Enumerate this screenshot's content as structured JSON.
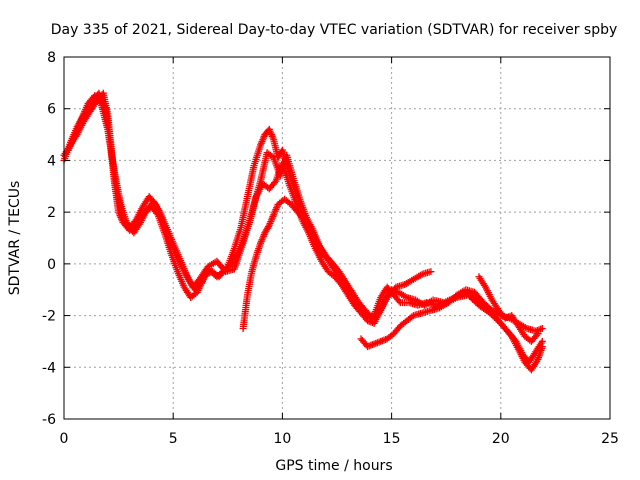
{
  "chart_data": {
    "type": "scatter",
    "title": "Day 335 of 2021, Sidereal Day-to-day VTEC variation (SDTVAR) for receiver spby",
    "xlabel": "GPS time / hours",
    "ylabel": "SDTVAR / TECUs",
    "xlim": [
      0,
      25
    ],
    "ylim": [
      -6,
      8
    ],
    "xticks": [
      0,
      5,
      10,
      15,
      20,
      25
    ],
    "yticks": [
      -6,
      -4,
      -2,
      0,
      2,
      4,
      6,
      8
    ],
    "grid": true,
    "marker": "+",
    "color": "#ff0000",
    "series": [
      {
        "x": [
          0.0,
          0.3,
          0.6,
          1.0,
          1.3,
          1.6,
          1.9,
          2.1,
          2.3,
          2.5,
          2.7,
          3.0,
          3.3,
          3.7,
          4.0,
          4.3,
          4.6,
          4.9,
          5.2,
          5.5,
          5.8,
          6.1,
          6.5,
          6.8,
          7.1,
          7.5,
          7.8,
          8.1,
          8.4,
          8.7,
          9.0,
          9.2,
          9.4,
          9.6,
          9.8,
          10.0,
          10.3,
          10.6,
          10.9,
          11.2,
          11.5,
          11.8,
          12.1,
          12.4,
          12.7,
          13.0,
          13.3,
          13.6,
          13.9,
          14.2,
          14.5,
          14.8,
          15.1,
          15.4,
          15.8,
          16.2,
          16.6,
          17.0,
          17.5,
          18.0,
          18.5,
          19.0,
          19.5,
          20.0,
          20.5,
          20.8,
          21.1,
          21.4,
          21.7,
          21.9
        ],
        "y": [
          4.0,
          4.7,
          5.3,
          5.9,
          6.3,
          6.6,
          6.0,
          4.8,
          3.2,
          2.0,
          1.6,
          1.3,
          1.5,
          2.0,
          2.2,
          1.9,
          1.2,
          0.4,
          -0.3,
          -0.9,
          -1.3,
          -1.1,
          -0.4,
          -0.3,
          -0.5,
          -0.1,
          0.6,
          1.4,
          2.6,
          3.8,
          4.6,
          5.0,
          5.2,
          4.8,
          4.1,
          4.4,
          3.6,
          2.8,
          2.0,
          1.5,
          0.8,
          0.4,
          0.2,
          -0.1,
          -0.5,
          -0.9,
          -1.4,
          -1.7,
          -2.0,
          -2.0,
          -1.3,
          -0.9,
          -1.2,
          -1.5,
          -1.5,
          -1.6,
          -1.5,
          -1.6,
          -1.5,
          -1.3,
          -1.2,
          -1.6,
          -1.9,
          -2.3,
          -2.8,
          -3.3,
          -3.8,
          -4.1,
          -3.7,
          -3.2
        ]
      },
      {
        "x": [
          0.2,
          0.5,
          0.8,
          1.1,
          1.4,
          1.7,
          2.0,
          2.3,
          2.6,
          2.9,
          3.2,
          3.5,
          3.8,
          4.1,
          4.4,
          4.7,
          5.0,
          5.3,
          5.6,
          5.9,
          6.2,
          6.6,
          7.0,
          7.4,
          7.8,
          8.2,
          8.6,
          9.0,
          9.3,
          9.6,
          9.9,
          10.2,
          10.5,
          10.8,
          11.1,
          11.4,
          11.7,
          12.0,
          12.3,
          12.6,
          12.9,
          13.2,
          13.5,
          13.8,
          14.1,
          14.4,
          14.7,
          15.0,
          15.3,
          15.7,
          16.1,
          16.5,
          16.9,
          17.4,
          17.9,
          18.4,
          18.9,
          19.4,
          19.9,
          20.3,
          20.7,
          21.0,
          21.3,
          21.6,
          21.9
        ],
        "y": [
          4.4,
          5.0,
          5.6,
          6.2,
          6.5,
          6.2,
          5.2,
          3.6,
          2.3,
          1.5,
          1.2,
          1.6,
          2.1,
          2.4,
          2.0,
          1.4,
          0.8,
          0.2,
          -0.4,
          -0.9,
          -0.6,
          -0.1,
          0.1,
          -0.3,
          -0.2,
          0.8,
          2.0,
          3.2,
          4.3,
          4.1,
          3.4,
          4.2,
          3.3,
          2.5,
          1.8,
          1.3,
          0.7,
          0.3,
          0.0,
          -0.3,
          -0.7,
          -1.1,
          -1.5,
          -1.8,
          -2.1,
          -1.9,
          -1.4,
          -1.0,
          -1.1,
          -1.3,
          -1.4,
          -1.6,
          -1.4,
          -1.5,
          -1.3,
          -1.1,
          -1.4,
          -1.7,
          -2.2,
          -2.6,
          -3.0,
          -3.5,
          -3.8,
          -3.4,
          -3.0
        ]
      },
      {
        "x": [
          0.0,
          0.3,
          0.6,
          0.9,
          1.2,
          1.5,
          1.8,
          2.0,
          2.2,
          2.4,
          2.7,
          3.0,
          3.3,
          3.6,
          3.9,
          4.2,
          4.5,
          4.8,
          5.1,
          5.4,
          5.7,
          6.0,
          6.3,
          6.6,
          7.0,
          7.4,
          7.8,
          8.2,
          8.5,
          8.8,
          9.1,
          9.4,
          9.7,
          10.0,
          10.3,
          10.6,
          10.9,
          11.2,
          11.5,
          11.8,
          12.1,
          12.4,
          12.7,
          13.0,
          13.3,
          13.6,
          13.9,
          14.2,
          14.5,
          14.8,
          15.2,
          15.6,
          16.0,
          16.4,
          16.8
        ],
        "y": [
          4.2,
          4.6,
          5.0,
          5.5,
          5.9,
          6.3,
          6.6,
          5.8,
          4.2,
          2.8,
          1.8,
          1.4,
          1.7,
          2.2,
          2.6,
          2.3,
          1.7,
          1.0,
          0.4,
          -0.1,
          -0.6,
          -1.0,
          -0.7,
          -0.2,
          -0.5,
          -0.2,
          0.1,
          0.9,
          1.6,
          2.6,
          3.1,
          2.9,
          3.2,
          3.9,
          3.1,
          2.4,
          1.7,
          1.2,
          0.6,
          0.1,
          -0.3,
          -0.5,
          -0.8,
          -1.2,
          -1.6,
          -1.9,
          -2.2,
          -2.3,
          -1.8,
          -1.3,
          -0.9,
          -0.8,
          -0.6,
          -0.4,
          -0.3
        ]
      },
      {
        "x": [
          8.2,
          8.4,
          8.6,
          8.8,
          9.0,
          9.2,
          9.4,
          9.6,
          9.8,
          10.1,
          10.4,
          10.7,
          11.0,
          11.3,
          11.6,
          11.9,
          12.2,
          12.5,
          12.8,
          13.1,
          13.4,
          13.7
        ],
        "y": [
          -2.5,
          -1.2,
          -0.3,
          0.3,
          0.8,
          1.2,
          1.5,
          1.9,
          2.3,
          2.5,
          2.3,
          2.0,
          1.7,
          1.3,
          0.8,
          0.4,
          0.0,
          -0.4,
          -0.8,
          -1.1,
          -1.5,
          -1.8
        ]
      },
      {
        "x": [
          13.6,
          13.9,
          14.2,
          14.5,
          14.8,
          15.1,
          15.4,
          15.7,
          16.0,
          16.4,
          16.8,
          17.2,
          17.6,
          18.0,
          18.4,
          18.8,
          19.2,
          19.6,
          20.0,
          20.4,
          20.8,
          21.2,
          21.6,
          21.9
        ],
        "y": [
          -2.9,
          -3.2,
          -3.1,
          -3.0,
          -2.9,
          -2.7,
          -2.4,
          -2.2,
          -2.0,
          -1.9,
          -1.8,
          -1.7,
          -1.5,
          -1.2,
          -1.0,
          -1.1,
          -1.5,
          -1.8,
          -2.0,
          -2.1,
          -2.3,
          -2.5,
          -2.6,
          -2.5
        ]
      },
      {
        "x": [
          19.0,
          19.3,
          19.6,
          19.9,
          20.2,
          20.5,
          20.8,
          21.1,
          21.4,
          21.7
        ],
        "y": [
          -0.5,
          -0.9,
          -1.4,
          -1.8,
          -2.1,
          -2.0,
          -2.4,
          -2.8,
          -3.0,
          -2.7
        ]
      }
    ]
  }
}
